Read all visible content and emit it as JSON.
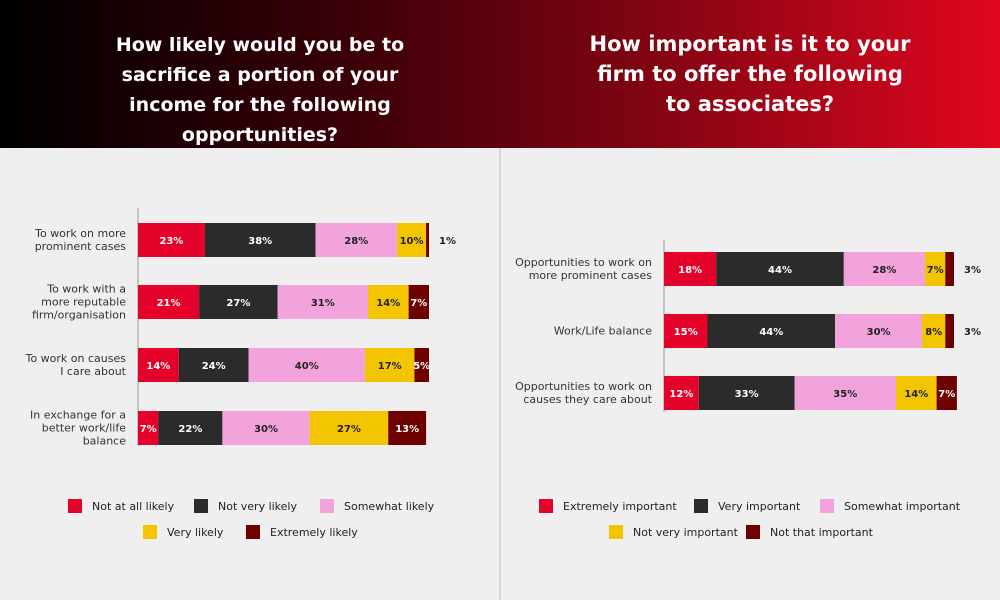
{
  "chart_data": [
    {
      "type": "stacked-bar-horizontal",
      "title": "How likely would you be to sacrifice a portion of your income for the following opportunities?",
      "categories": [
        "To work on more prominent cases",
        "To work with a more reputable firm/organisation",
        "To work on causes I care about",
        "In exchange for a better work/life balance"
      ],
      "series": [
        {
          "name": "Not at all likely",
          "color": "#e4022b",
          "values": [
            23,
            21,
            14,
            7
          ],
          "value_labels": [
            "23%",
            "21%",
            "14%",
            "7%"
          ]
        },
        {
          "name": "Not very likely",
          "color": "#2b2b2b",
          "values": [
            38,
            27,
            24,
            22
          ],
          "value_labels": [
            "38%",
            "27%",
            "24%",
            "22%"
          ]
        },
        {
          "name": "Somewhat likely",
          "color": "#f2a3dc",
          "values": [
            28,
            31,
            40,
            30
          ],
          "value_labels": [
            "28%",
            "31%",
            "40%",
            "30%"
          ]
        },
        {
          "name": "Very likely",
          "color": "#f2c500",
          "values": [
            10,
            14,
            17,
            27
          ],
          "value_labels": [
            "10%",
            "14%",
            "17%",
            "27%"
          ]
        },
        {
          "name": "Extremely likely",
          "color": "#6e0000",
          "values": [
            1,
            7,
            5,
            13
          ],
          "value_labels": [
            "1%",
            "7%",
            "5%",
            "13%"
          ]
        }
      ]
    },
    {
      "type": "stacked-bar-horizontal",
      "title": "How important is it to your firm to offer the following to associates?",
      "categories": [
        "Opportunities to work on more prominent cases",
        "Work/Life balance",
        "Opportunities to work on causes they care about"
      ],
      "series": [
        {
          "name": "Extremely important",
          "color": "#e4022b",
          "values": [
            18,
            15,
            12
          ],
          "value_labels": [
            "18%",
            "15%",
            "12%"
          ]
        },
        {
          "name": "Very important",
          "color": "#2b2b2b",
          "values": [
            44,
            44,
            33
          ],
          "value_labels": [
            "44%",
            "44%",
            "33%"
          ]
        },
        {
          "name": "Somewhat important",
          "color": "#f2a3dc",
          "values": [
            28,
            30,
            35
          ],
          "value_labels": [
            "28%",
            "30%",
            "35%"
          ]
        },
        {
          "name": "Not very important",
          "color": "#f2c500",
          "values": [
            7,
            8,
            14
          ],
          "value_labels": [
            "7%",
            "8%",
            "14%"
          ]
        },
        {
          "name": "Not that important",
          "color": "#6e0000",
          "values": [
            3,
            3,
            7
          ],
          "value_labels": [
            "3%",
            "3%",
            "7%"
          ]
        }
      ]
    }
  ]
}
